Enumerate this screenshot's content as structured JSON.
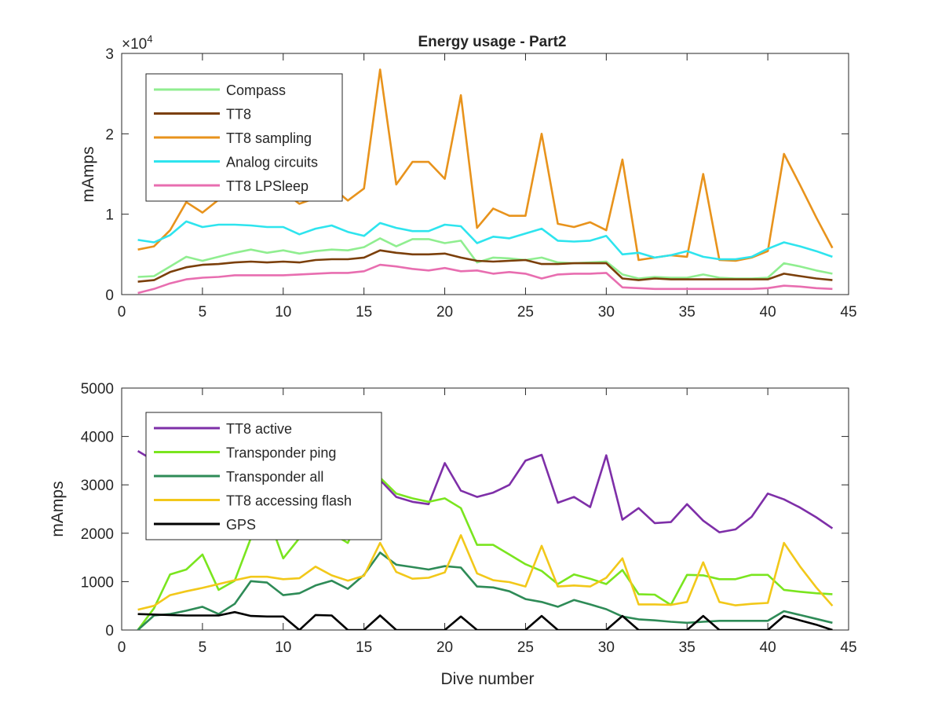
{
  "figure": {
    "title": "Energy usage - Part2",
    "xlabel": "Dive number"
  },
  "chart_data": [
    {
      "type": "line",
      "title": "Energy usage - Part2",
      "xlabel": "",
      "ylabel": "mAmps",
      "y_exponent_label": "×10",
      "y_exponent_power": "4",
      "xlim": [
        0,
        45
      ],
      "ylim": [
        0,
        30000
      ],
      "xticks": [
        0,
        5,
        10,
        15,
        20,
        25,
        30,
        35,
        40,
        45
      ],
      "yticks": [
        0,
        10000,
        20000,
        30000
      ],
      "ytick_labels": [
        "0",
        "1",
        "2",
        "3"
      ],
      "grid": false,
      "legend_position": "top-left",
      "x": [
        1,
        2,
        3,
        4,
        5,
        6,
        7,
        8,
        9,
        10,
        11,
        12,
        13,
        14,
        15,
        16,
        17,
        18,
        19,
        20,
        21,
        22,
        23,
        24,
        25,
        26,
        27,
        28,
        29,
        30,
        31,
        32,
        33,
        34,
        35,
        36,
        37,
        38,
        39,
        40,
        41,
        42,
        43,
        44
      ],
      "series": [
        {
          "name": "Compass",
          "color": "#90ee90",
          "values": [
            2200,
            2300,
            3500,
            4700,
            4200,
            4700,
            5200,
            5600,
            5200,
            5500,
            5100,
            5400,
            5600,
            5500,
            5900,
            7000,
            6000,
            6900,
            6900,
            6400,
            6700,
            4000,
            4600,
            4500,
            4300,
            4600,
            4000,
            3900,
            4000,
            4100,
            2500,
            2000,
            2200,
            2100,
            2100,
            2500,
            2100,
            2000,
            2000,
            2100,
            3900,
            3500,
            3000,
            2600
          ]
        },
        {
          "name": "TT8",
          "color": "#7b3f0a",
          "values": [
            1600,
            1800,
            2800,
            3400,
            3700,
            3800,
            4000,
            4100,
            4000,
            4100,
            4000,
            4300,
            4400,
            4400,
            4600,
            5500,
            5200,
            5000,
            5000,
            5100,
            4600,
            4200,
            4100,
            4200,
            4300,
            3800,
            3800,
            3900,
            3900,
            3900,
            2000,
            1800,
            2000,
            1900,
            1900,
            1900,
            1900,
            1900,
            1900,
            1900,
            2600,
            2300,
            2000,
            1800
          ]
        },
        {
          "name": "TT8 sampling",
          "color": "#e8931c",
          "values": [
            5600,
            6000,
            8000,
            11500,
            10200,
            11800,
            12300,
            12500,
            12600,
            12800,
            11300,
            12000,
            13400,
            11700,
            13200,
            28000,
            13700,
            16500,
            16500,
            14400,
            24800,
            8300,
            10700,
            9800,
            9800,
            20000,
            8800,
            8400,
            9000,
            8000,
            16800,
            4300,
            4600,
            4900,
            4700,
            15000,
            4300,
            4200,
            4600,
            5400,
            17500,
            13600,
            9600,
            5800
          ]
        },
        {
          "name": "Analog circuits",
          "color": "#2ee4ee",
          "values": [
            6800,
            6500,
            7400,
            9100,
            8400,
            8700,
            8700,
            8600,
            8400,
            8400,
            7500,
            8200,
            8600,
            7800,
            7300,
            8900,
            8300,
            7900,
            7900,
            8700,
            8500,
            6400,
            7200,
            7000,
            7600,
            8200,
            6700,
            6600,
            6700,
            7300,
            5000,
            5200,
            4600,
            4900,
            5400,
            4700,
            4400,
            4400,
            4700,
            5700,
            6500,
            6000,
            5400,
            4700
          ]
        },
        {
          "name": "TT8 LPSleep",
          "color": "#e86eb0",
          "values": [
            200,
            700,
            1400,
            1900,
            2100,
            2200,
            2400,
            2400,
            2400,
            2400,
            2500,
            2600,
            2700,
            2700,
            2900,
            3700,
            3500,
            3200,
            3000,
            3300,
            2900,
            3000,
            2600,
            2800,
            2600,
            2000,
            2500,
            2600,
            2600,
            2700,
            900,
            800,
            700,
            700,
            700,
            700,
            700,
            700,
            700,
            800,
            1100,
            1000,
            800,
            700
          ]
        }
      ]
    },
    {
      "type": "line",
      "title": "",
      "xlabel": "Dive number",
      "ylabel": "mAmps",
      "xlim": [
        0,
        45
      ],
      "ylim": [
        0,
        5000
      ],
      "xticks": [
        0,
        5,
        10,
        15,
        20,
        25,
        30,
        35,
        40,
        45
      ],
      "yticks": [
        0,
        1000,
        2000,
        3000,
        4000,
        5000
      ],
      "ytick_labels": [
        "0",
        "1000",
        "2000",
        "3000",
        "4000",
        "5000"
      ],
      "grid": false,
      "legend_position": "top-left",
      "x": [
        1,
        2,
        3,
        4,
        5,
        6,
        7,
        8,
        9,
        10,
        11,
        12,
        13,
        14,
        15,
        16,
        17,
        18,
        19,
        20,
        21,
        22,
        23,
        24,
        25,
        26,
        27,
        28,
        29,
        30,
        31,
        32,
        33,
        34,
        35,
        36,
        37,
        38,
        39,
        40,
        41,
        42,
        43,
        44
      ],
      "series": [
        {
          "name": "TT8 active",
          "color": "#7e2fa8",
          "values": [
            3700,
            3500,
            3600,
            3400,
            3300,
            3300,
            3300,
            3400,
            3300,
            3200,
            3200,
            3200,
            3100,
            3200,
            3100,
            3100,
            2750,
            2650,
            2600,
            3450,
            2880,
            2750,
            2840,
            3000,
            3500,
            3620,
            2630,
            2750,
            2540,
            3610,
            2280,
            2520,
            2210,
            2230,
            2600,
            2260,
            2020,
            2080,
            2340,
            2820,
            2700,
            2530,
            2330,
            2100
          ]
        },
        {
          "name": "Transponder ping",
          "color": "#7ae51f",
          "values": [
            0,
            450,
            1150,
            1250,
            1560,
            830,
            1020,
            1900,
            2400,
            1480,
            1900,
            2300,
            2000,
            1800,
            2500,
            3150,
            2820,
            2720,
            2650,
            2720,
            2520,
            1760,
            1760,
            1560,
            1360,
            1220,
            950,
            1150,
            1060,
            950,
            1240,
            740,
            730,
            520,
            1140,
            1130,
            1050,
            1050,
            1140,
            1140,
            830,
            790,
            760,
            740
          ]
        },
        {
          "name": "Transponder all",
          "color": "#2e8b57",
          "values": [
            0,
            300,
            330,
            400,
            480,
            330,
            540,
            1010,
            980,
            720,
            760,
            920,
            1020,
            850,
            1140,
            1600,
            1350,
            1300,
            1250,
            1320,
            1290,
            900,
            880,
            800,
            640,
            580,
            480,
            620,
            530,
            430,
            280,
            220,
            200,
            170,
            150,
            170,
            190,
            190,
            190,
            190,
            390,
            310,
            230,
            150
          ]
        },
        {
          "name": "TT8 accessing flash",
          "color": "#f2c81a",
          "values": [
            420,
            500,
            720,
            800,
            870,
            950,
            1030,
            1100,
            1100,
            1050,
            1070,
            1310,
            1130,
            1020,
            1120,
            1800,
            1200,
            1060,
            1080,
            1190,
            1960,
            1170,
            1030,
            990,
            900,
            1740,
            900,
            920,
            900,
            1080,
            1480,
            530,
            530,
            520,
            580,
            1400,
            580,
            510,
            540,
            560,
            1800,
            1310,
            880,
            500
          ]
        },
        {
          "name": "GPS",
          "color": "#000000",
          "values": [
            330,
            320,
            310,
            300,
            300,
            300,
            370,
            290,
            280,
            280,
            0,
            310,
            300,
            0,
            0,
            300,
            0,
            0,
            0,
            0,
            280,
            0,
            0,
            0,
            0,
            290,
            0,
            0,
            0,
            0,
            290,
            0,
            0,
            0,
            0,
            290,
            0,
            0,
            0,
            0,
            290,
            200,
            110,
            0
          ]
        }
      ]
    }
  ]
}
